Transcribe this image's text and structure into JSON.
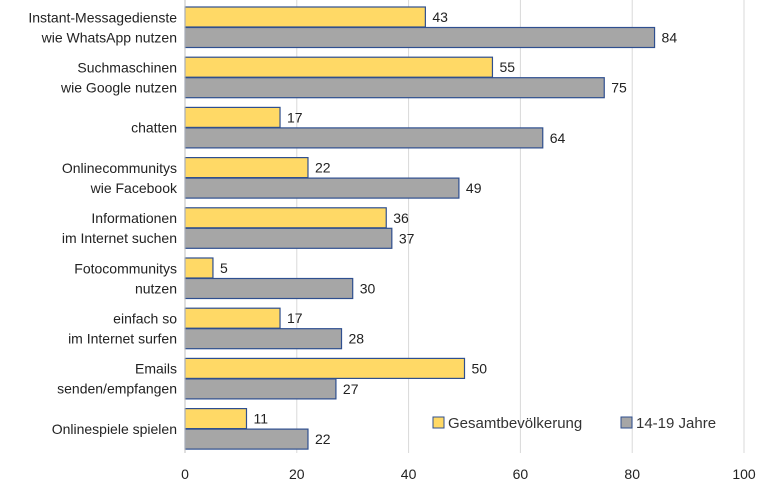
{
  "chart_data": {
    "type": "bar",
    "orientation": "horizontal",
    "categories": [
      [
        "Instant-Messagedienste",
        "wie WhatsApp nutzen"
      ],
      [
        "Suchmaschinen",
        "wie Google nutzen"
      ],
      [
        "chatten"
      ],
      [
        "Onlinecommunitys",
        "wie Facebook"
      ],
      [
        "Informationen",
        "im Internet suchen"
      ],
      [
        "Fotocommunitys",
        "nutzen"
      ],
      [
        "einfach so",
        "im Internet surfen"
      ],
      [
        "Emails",
        "senden/empfangen"
      ],
      [
        "Onlinespiele spielen"
      ]
    ],
    "series": [
      {
        "name": "Gesamtbevölkerung",
        "color": "#ffd966",
        "values": [
          43,
          55,
          17,
          22,
          36,
          5,
          17,
          50,
          11
        ]
      },
      {
        "name": "14-19 Jahre",
        "color": "#a6a6a6",
        "values": [
          84,
          75,
          64,
          49,
          37,
          30,
          28,
          27,
          22
        ]
      }
    ],
    "xlim": [
      0,
      100
    ],
    "xticks": [
      0,
      20,
      40,
      60,
      80,
      100
    ],
    "grid": true,
    "legend_position": "bottom-right",
    "bar_outline_color": "#2f4f8f",
    "title": "",
    "xlabel": "",
    "ylabel": ""
  }
}
